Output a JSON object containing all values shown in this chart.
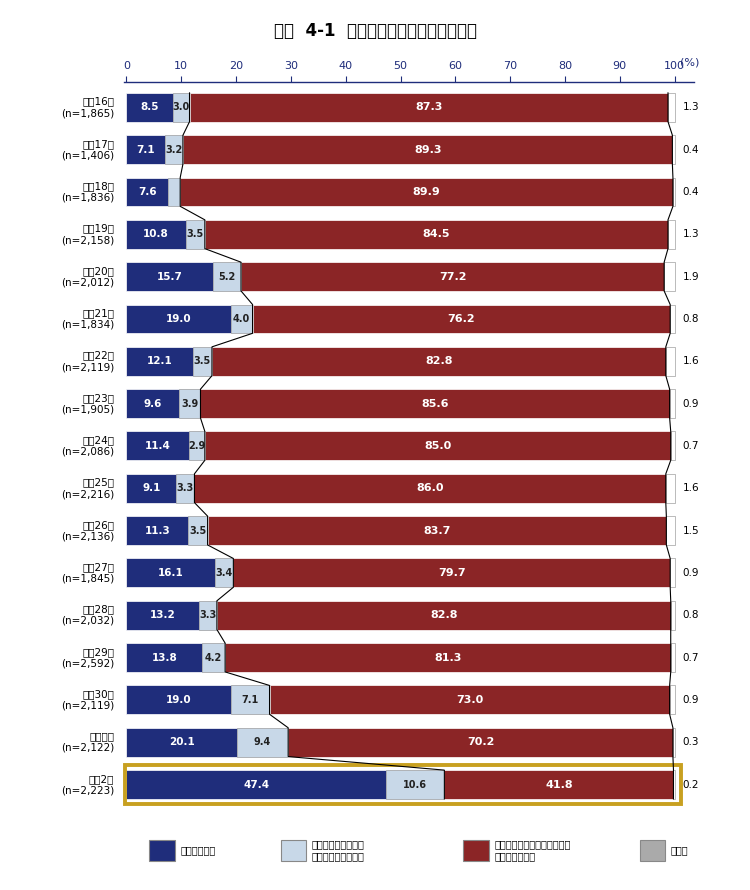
{
  "title": "図表  4-1  テレワークの導入状況の推移",
  "years": [
    "平成16年\n(n=1,865)",
    "平成17年\n(n=1,406)",
    "平成18年\n(n=1,836)",
    "平成19年\n(n=2,158)",
    "平成20年\n(n=2,012)",
    "平成21年\n(n=1,834)",
    "平成22年\n(n=2,119)",
    "平成23年\n(n=1,905)",
    "平成24年\n(n=2,086)",
    "平成25年\n(n=2,216)",
    "平成26年\n(n=2,136)",
    "平成27年\n(n=1,845)",
    "平成28年\n(n=2,032)",
    "平成29年\n(n=2,592)",
    "平成30年\n(n=2,119)",
    "令和元年\n(n=2,122)",
    "令和2年\n(n=2,223)"
  ],
  "introduced": [
    8.5,
    7.1,
    7.6,
    10.8,
    15.7,
    19.0,
    12.1,
    9.6,
    11.4,
    9.1,
    11.3,
    16.1,
    13.2,
    13.8,
    19.0,
    20.1,
    47.4
  ],
  "planned": [
    3.0,
    3.2,
    2.2,
    3.5,
    5.2,
    4.0,
    3.5,
    3.9,
    2.9,
    3.3,
    3.5,
    3.4,
    3.3,
    4.2,
    7.1,
    9.4,
    10.6
  ],
  "not_planned": [
    87.3,
    89.3,
    89.9,
    84.5,
    77.2,
    76.2,
    82.8,
    85.6,
    85.0,
    86.0,
    83.7,
    79.7,
    82.8,
    81.3,
    73.0,
    70.2,
    41.8
  ],
  "no_answer": [
    1.3,
    0.4,
    0.4,
    1.3,
    1.9,
    0.8,
    1.6,
    0.9,
    0.7,
    1.6,
    1.5,
    0.9,
    0.8,
    0.7,
    0.9,
    0.3,
    0.2
  ],
  "color_introduced": "#1F2D7B",
  "color_planned": "#C8D8E8",
  "color_not_planned": "#8B2526",
  "color_no_answer": "#FFFFFF",
  "color_last_row_border": "#C8A020",
  "no_answer_text_color": "#CC8800",
  "legend_intro": "導入している",
  "legend_planned_line1": "導入していないが、",
  "legend_planned_line2": "今後導入予定がある",
  "legend_noplan_line1": "導入していないし、具体的な",
  "legend_noplan_line2": "導入予定もない",
  "legend_noanswer": "無回答"
}
